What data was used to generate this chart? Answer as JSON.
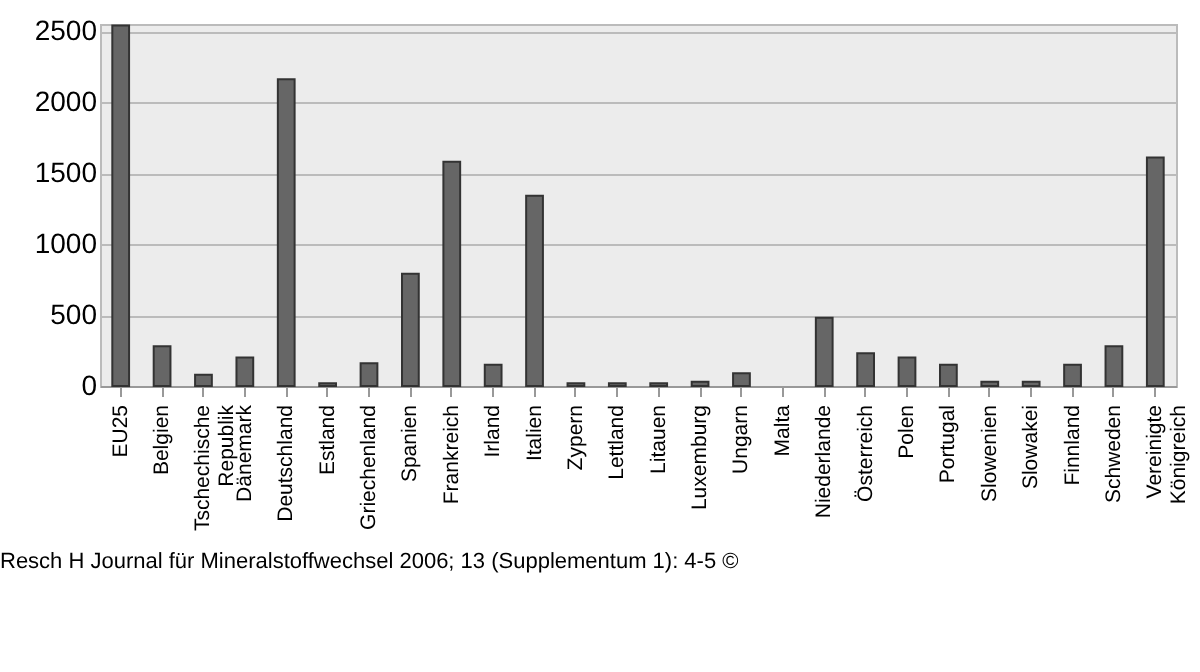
{
  "chart_data": {
    "type": "bar",
    "categories": [
      "EU25",
      "Belgien",
      "Tschechische Republik",
      "Dänemark",
      "Deutschland",
      "Estland",
      "Griechenland",
      "Spanien",
      "Frankreich",
      "Irland",
      "Italien",
      "Zypern",
      "Lettland",
      "Litauen",
      "Luxemburg",
      "Ungarn",
      "Malta",
      "Niederlande",
      "Österreich",
      "Polen",
      "Portugal",
      "Slowenien",
      "Slowakei",
      "Finnland",
      "Schweden",
      "Vereinigte Königreich"
    ],
    "values": [
      2540,
      280,
      80,
      200,
      2160,
      20,
      160,
      790,
      1580,
      150,
      1340,
      20,
      20,
      20,
      30,
      90,
      null,
      480,
      230,
      200,
      150,
      30,
      30,
      150,
      280,
      1610
    ],
    "color": "#666666",
    "ylim": [
      0,
      2550
    ],
    "yticks": [
      0,
      500,
      1000,
      1500,
      2000,
      2500
    ],
    "grid": "y",
    "annotations": [
      "Resch H Journal für Mineralstoffwechsel 2006; 13 (Supplementum 1): 4-5 ©"
    ]
  }
}
